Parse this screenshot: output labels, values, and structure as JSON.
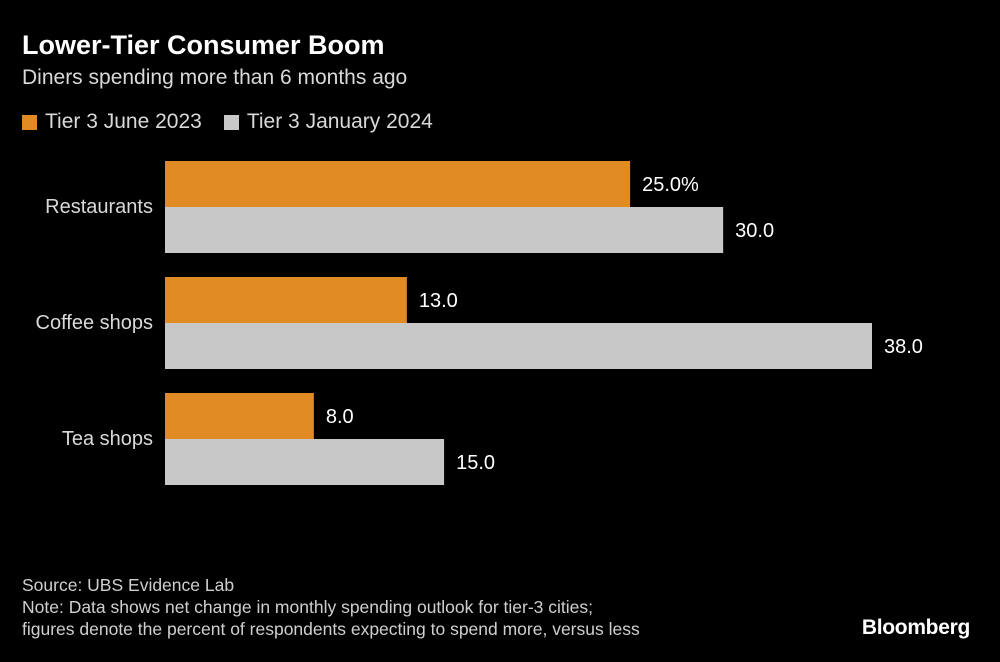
{
  "header": {
    "title": "Lower-Tier Consumer Boom",
    "subtitle": "Diners spending more than 6 months ago"
  },
  "legend": [
    {
      "label": "Tier 3 June 2023",
      "color": "#e08b24"
    },
    {
      "label": "Tier 3 January 2024",
      "color": "#c8c8c8"
    }
  ],
  "chart_data": {
    "type": "bar",
    "orientation": "horizontal",
    "title": "Lower-Tier Consumer Boom",
    "subtitle": "Diners spending more than 6 months ago",
    "categories": [
      "Restaurants",
      "Coffee shops",
      "Tea shops"
    ],
    "series": [
      {
        "name": "Tier 3 June 2023",
        "color": "#e08b24",
        "values": [
          25.0,
          13.0,
          8.0
        ],
        "labels": [
          "25.0%",
          "13.0",
          "8.0"
        ]
      },
      {
        "name": "Tier 3 January 2024",
        "color": "#c8c8c8",
        "values": [
          30.0,
          38.0,
          15.0
        ],
        "labels": [
          "30.0",
          "38.0",
          "15.0"
        ]
      }
    ],
    "xlim": [
      0,
      38
    ],
    "xlabel": "",
    "ylabel": "",
    "grid": false,
    "legend_position": "top-left"
  },
  "footer": {
    "source": "Source: UBS Evidence Lab",
    "note_line1": "Note: Data shows net change in monthly spending outlook for tier-3 cities;",
    "note_line2": "figures denote the percent of respondents expecting to spend more, versus less"
  },
  "branding": {
    "logo_text": "Bloomberg"
  }
}
